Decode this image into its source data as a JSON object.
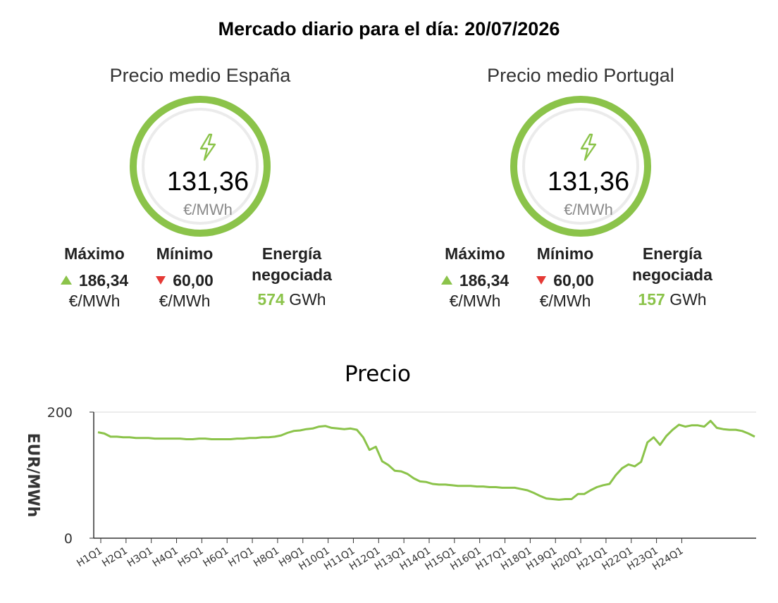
{
  "header": {
    "title": "Mercado diario para el día: 20/07/2026"
  },
  "accent_color": "#8bc34a",
  "down_color": "#e53935",
  "panels": [
    {
      "title": "Precio medio España",
      "icon": "lightning-bolt-icon",
      "price": "131,36",
      "unit": "€/MWh",
      "max_label": "Máximo",
      "max_value": "186,34",
      "max_unit": "€/MWh",
      "min_label": "Mínimo",
      "min_value": "60,00",
      "min_unit": "€/MWh",
      "energy_label_1": "Energía",
      "energy_label_2": "negociada",
      "energy_value": "574",
      "energy_unit": "GWh"
    },
    {
      "title": "Precio medio Portugal",
      "icon": "lightning-bolt-icon",
      "price": "131,36",
      "unit": "€/MWh",
      "max_label": "Máximo",
      "max_value": "186,34",
      "max_unit": "€/MWh",
      "min_label": "Mínimo",
      "min_value": "60,00",
      "min_unit": "€/MWh",
      "energy_label_1": "Energía",
      "energy_label_2": "negociada",
      "energy_value": "157",
      "energy_unit": "GWh"
    }
  ],
  "chart_data": {
    "type": "line",
    "title": "Precio",
    "xlabel": "",
    "ylabel": "EUR/MWh",
    "ylim": [
      0,
      200
    ],
    "yticks": [
      0,
      200
    ],
    "grid": true,
    "legend": "none",
    "tick_labels": [
      "H1Q1",
      "H2Q1",
      "H3Q1",
      "H4Q1",
      "H5Q1",
      "H6Q1",
      "H7Q1",
      "H8Q1",
      "H9Q1",
      "H10Q1",
      "H11Q1",
      "H12Q1",
      "H13Q1",
      "H14Q1",
      "H15Q1",
      "H16Q1",
      "H17Q1",
      "H18Q1",
      "H19Q1",
      "H20Q1",
      "H21Q1",
      "H22Q1",
      "H23Q1",
      "H24Q1"
    ],
    "series": [
      {
        "color": "#8bc34a",
        "values": [
          168,
          166,
          161,
          161,
          160,
          160,
          159,
          159,
          159,
          158,
          158,
          158,
          158,
          158,
          157,
          157,
          158,
          158,
          157,
          157,
          157,
          157,
          158,
          158,
          159,
          159,
          160,
          160,
          161,
          163,
          167,
          170,
          171,
          173,
          174,
          177,
          178,
          175,
          174,
          173,
          174,
          172,
          160,
          140,
          145,
          122,
          116,
          107,
          106,
          102,
          95,
          90,
          89,
          86,
          85,
          85,
          84,
          83,
          83,
          83,
          82,
          82,
          81,
          81,
          80,
          80,
          80,
          78,
          76,
          72,
          67,
          63,
          62,
          61,
          62,
          62,
          70,
          70,
          76,
          81,
          84,
          86,
          100,
          111,
          117,
          114,
          121,
          152,
          160,
          148,
          162,
          172,
          180,
          177,
          179,
          179,
          177,
          186,
          175,
          173,
          172,
          172,
          170,
          166,
          161
        ]
      }
    ]
  }
}
